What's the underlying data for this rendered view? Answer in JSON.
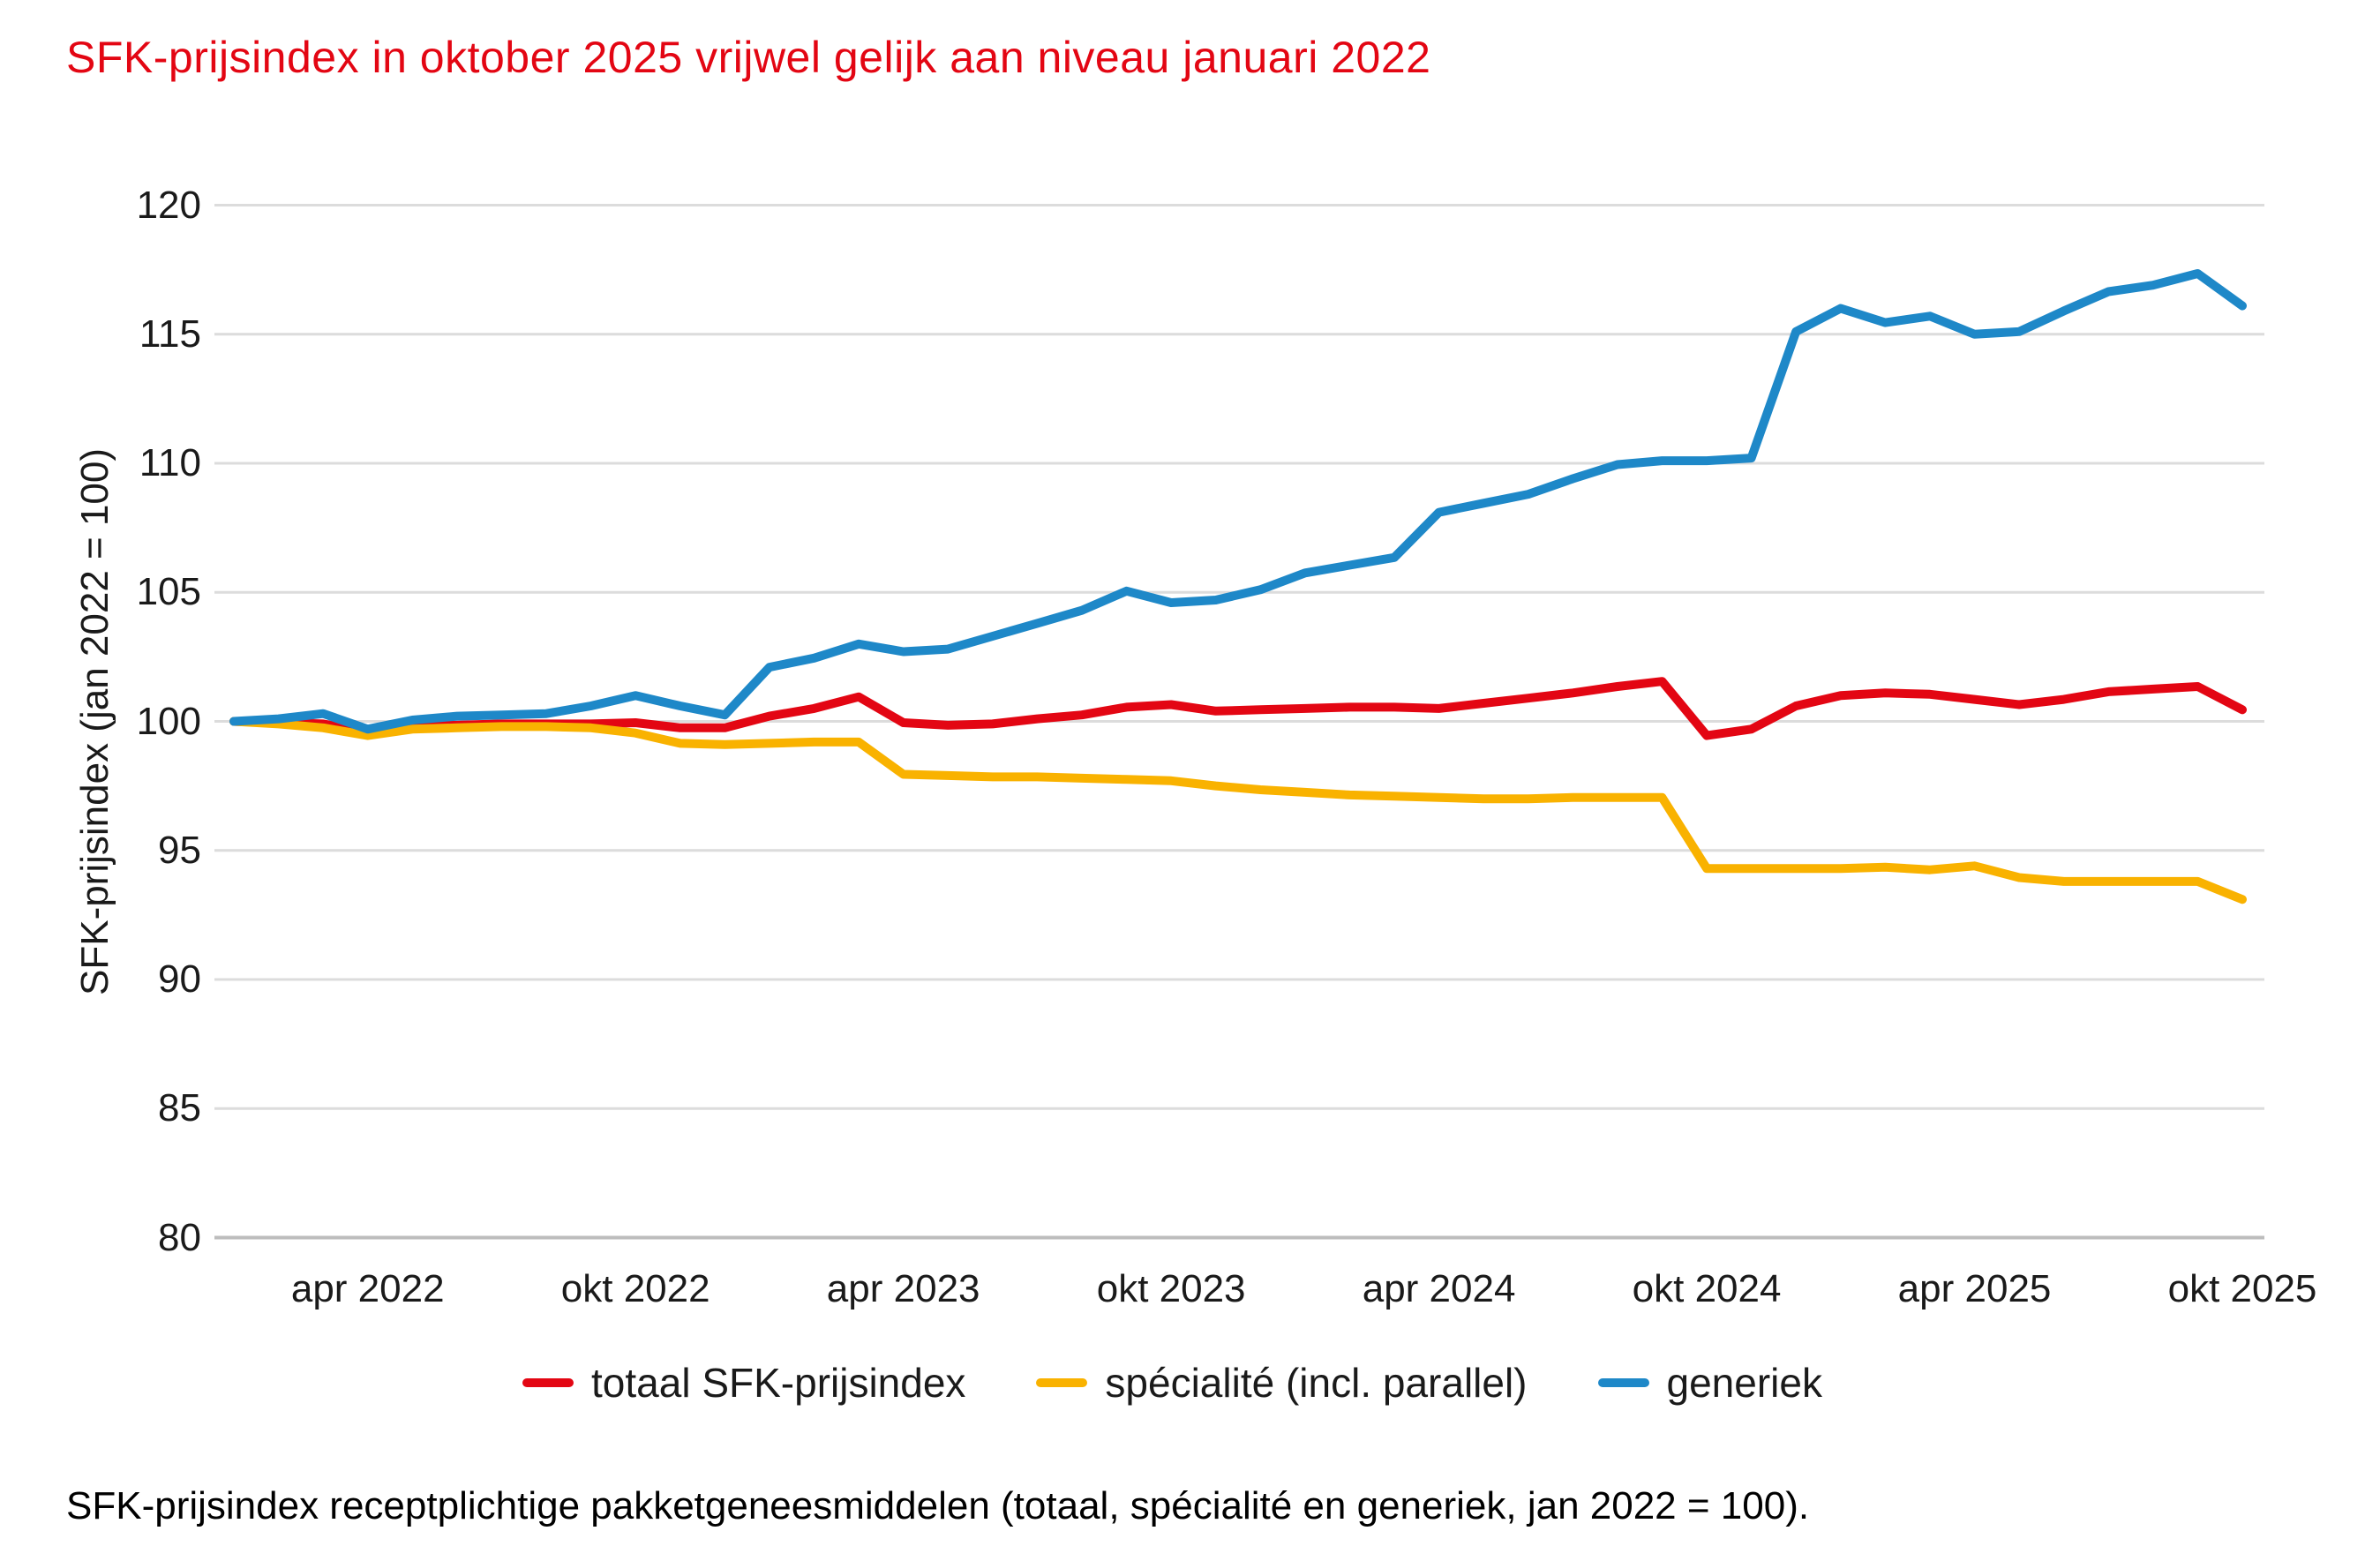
{
  "page": {
    "caption": "SFK-prijsindex receptplichtige pakketgeneesmiddelen (totaal, spécialité en generiek, jan 2022 = 100)."
  },
  "chart_data": {
    "type": "line",
    "title": "SFK-prijsindex in oktober 2025 vrijwel gelijk aan niveau januari 2022",
    "xlabel": "",
    "ylabel": "SFK-prijsindex (jan 2022 = 100)",
    "ylim": [
      80,
      120
    ],
    "y_ticks": [
      80,
      85,
      90,
      95,
      100,
      105,
      110,
      115,
      120
    ],
    "grid": true,
    "legend_position": "bottom",
    "x_ticks": [
      {
        "label": "apr 2022",
        "index": 3
      },
      {
        "label": "okt 2022",
        "index": 9
      },
      {
        "label": "apr 2023",
        "index": 15
      },
      {
        "label": "okt 2023",
        "index": 21
      },
      {
        "label": "apr 2024",
        "index": 27
      },
      {
        "label": "okt 2024",
        "index": 33
      },
      {
        "label": "apr 2025",
        "index": 39
      },
      {
        "label": "okt 2025",
        "index": 45
      }
    ],
    "categories": [
      "jan 2022",
      "feb 2022",
      "mrt 2022",
      "apr 2022",
      "mei 2022",
      "jun 2022",
      "jul 2022",
      "aug 2022",
      "sep 2022",
      "okt 2022",
      "nov 2022",
      "dec 2022",
      "jan 2023",
      "feb 2023",
      "mrt 2023",
      "apr 2023",
      "mei 2023",
      "jun 2023",
      "jul 2023",
      "aug 2023",
      "sep 2023",
      "okt 2023",
      "nov 2023",
      "dec 2023",
      "jan 2024",
      "feb 2024",
      "mrt 2024",
      "apr 2024",
      "mei 2024",
      "jun 2024",
      "jul 2024",
      "aug 2024",
      "sep 2024",
      "okt 2024",
      "nov 2024",
      "dec 2024",
      "jan 2025",
      "feb 2025",
      "mrt 2025",
      "apr 2025",
      "mei 2025",
      "jun 2025",
      "jul 2025",
      "aug 2025",
      "sep 2025",
      "okt 2025"
    ],
    "series": [
      {
        "name": "totaal SFK-prijsindex",
        "color": "#E30613",
        "values": [
          100.0,
          99.95,
          99.9,
          99.6,
          99.85,
          99.85,
          99.9,
          99.9,
          99.9,
          99.95,
          99.75,
          99.75,
          100.2,
          100.5,
          100.95,
          99.95,
          99.85,
          99.9,
          100.1,
          100.25,
          100.55,
          100.65,
          100.4,
          100.45,
          100.5,
          100.55,
          100.55,
          100.5,
          100.7,
          100.9,
          101.1,
          101.35,
          101.55,
          99.45,
          99.7,
          100.6,
          101.0,
          101.1,
          101.05,
          100.85,
          100.65,
          100.85,
          101.15,
          101.25,
          101.35,
          100.45
        ]
      },
      {
        "name": "spécialité (incl. parallel)",
        "color": "#F9B200",
        "values": [
          100.0,
          99.9,
          99.75,
          99.45,
          99.7,
          99.75,
          99.8,
          99.8,
          99.75,
          99.55,
          99.15,
          99.1,
          99.15,
          99.2,
          99.2,
          97.95,
          97.9,
          97.85,
          97.85,
          97.8,
          97.75,
          97.7,
          97.5,
          97.35,
          97.25,
          97.15,
          97.1,
          97.05,
          97.0,
          97.0,
          97.05,
          97.05,
          97.05,
          94.3,
          94.3,
          94.3,
          94.3,
          94.35,
          94.25,
          94.4,
          93.95,
          93.8,
          93.8,
          93.8,
          93.8,
          93.1
        ]
      },
      {
        "name": "generiek",
        "color": "#1E88C8",
        "values": [
          100.0,
          100.1,
          100.3,
          99.7,
          100.05,
          100.2,
          100.25,
          100.3,
          100.6,
          101.0,
          100.6,
          100.25,
          102.1,
          102.45,
          103.0,
          102.7,
          102.8,
          103.3,
          103.8,
          104.3,
          105.05,
          104.6,
          104.7,
          105.1,
          105.75,
          106.05,
          106.35,
          108.1,
          108.45,
          108.8,
          109.4,
          109.95,
          110.1,
          110.1,
          110.2,
          115.1,
          116.0,
          115.45,
          115.7,
          115.0,
          115.1,
          115.9,
          116.65,
          116.9,
          117.35,
          116.1
        ]
      }
    ]
  }
}
